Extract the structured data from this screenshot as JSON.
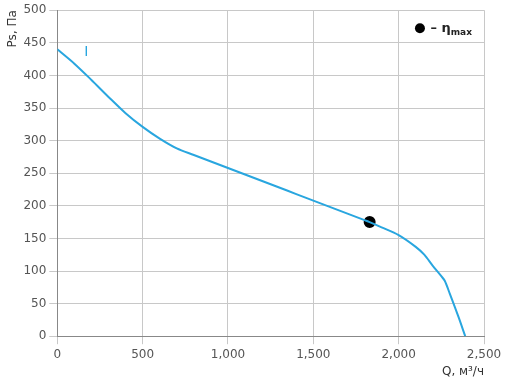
{
  "chart_data": {
    "type": "line",
    "x_label": "Q, м³/ч",
    "y_label": "Ps, Па",
    "xlim": [
      0,
      2500
    ],
    "xticks": [
      0,
      500,
      1000,
      1500,
      2000,
      2500
    ],
    "ylim": [
      0,
      500
    ],
    "yticks": [
      0,
      50,
      100,
      150,
      200,
      250,
      300,
      350,
      400,
      450,
      500
    ],
    "grid": true,
    "legend": "top-right",
    "series": [
      {
        "name": "I",
        "color": "#29a6df",
        "line_style": "solid",
        "marker": "none",
        "x": [
          0,
          100,
          200,
          300,
          400,
          500,
          600,
          700,
          800,
          900,
          1000,
          1100,
          1200,
          1300,
          1400,
          1500,
          1600,
          1700,
          1800,
          1830,
          1900,
          2000,
          2100,
          2150,
          2200,
          2250,
          2270,
          2300,
          2350,
          2390
        ],
        "values": [
          440,
          418,
          393,
          367,
          342,
          321,
          303,
          288,
          278,
          268,
          258,
          248,
          238,
          228,
          218,
          208,
          198,
          188,
          178,
          175,
          167,
          155,
          137,
          125,
          108,
          92,
          85,
          65,
          30,
          0
        ]
      },
      {
        "name": "– ηmax",
        "color": "#000000",
        "marker": "circle",
        "line_style": "none",
        "x": [
          1830
        ],
        "values": [
          175
        ]
      }
    ]
  }
}
